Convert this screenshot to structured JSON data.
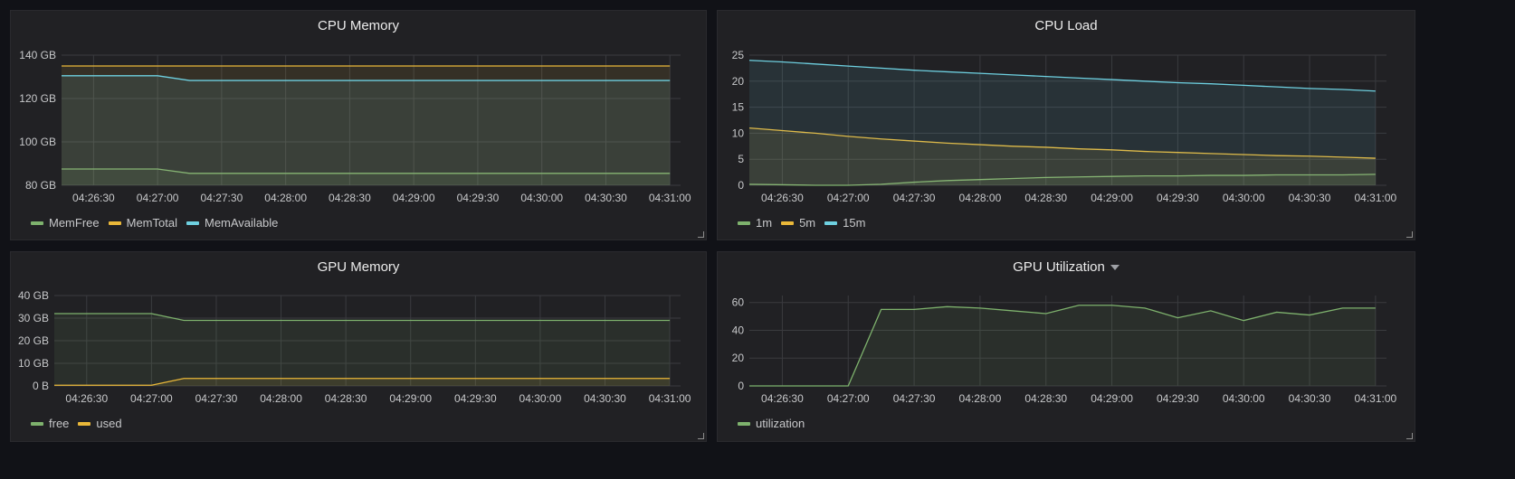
{
  "panels": [
    {
      "title": "CPU Memory",
      "has_caret": false,
      "chart_data": {
        "type": "area",
        "x": [
          "04:26:15",
          "04:26:30",
          "04:26:45",
          "04:27:00",
          "04:27:15",
          "04:27:30",
          "04:27:45",
          "04:28:00",
          "04:28:15",
          "04:28:30",
          "04:28:45",
          "04:29:00",
          "04:29:15",
          "04:29:30",
          "04:29:45",
          "04:30:00",
          "04:30:15",
          "04:30:30",
          "04:30:45",
          "04:31:00"
        ],
        "xlim": [
          "04:26:15",
          "04:31:05"
        ],
        "x_ticks": [
          "04:26:30",
          "04:27:00",
          "04:27:30",
          "04:28:00",
          "04:28:30",
          "04:29:00",
          "04:29:30",
          "04:30:00",
          "04:30:30",
          "04:31:00"
        ],
        "ylim": [
          80,
          140
        ],
        "y_ticks": [
          80,
          100,
          120,
          140
        ],
        "y_tick_labels": [
          "80 GB",
          "100 GB",
          "120 GB",
          "140 GB"
        ],
        "grid": true,
        "legend_position": "bottom-left",
        "series": [
          {
            "name": "MemFree",
            "color": "#7eb26d",
            "values": [
              87.5,
              87.5,
              87.5,
              87.5,
              85.5,
              85.5,
              85.5,
              85.5,
              85.5,
              85.5,
              85.5,
              85.5,
              85.5,
              85.5,
              85.5,
              85.5,
              85.5,
              85.5,
              85.5,
              85.5
            ]
          },
          {
            "name": "MemTotal",
            "color": "#eab839",
            "values": [
              135,
              135,
              135,
              135,
              135,
              135,
              135,
              135,
              135,
              135,
              135,
              135,
              135,
              135,
              135,
              135,
              135,
              135,
              135,
              135
            ]
          },
          {
            "name": "MemAvailable",
            "color": "#6ed0e0",
            "values": [
              130.5,
              130.5,
              130.5,
              130.5,
              128.3,
              128.3,
              128.3,
              128.3,
              128.3,
              128.3,
              128.3,
              128.3,
              128.3,
              128.3,
              128.3,
              128.3,
              128.3,
              128.3,
              128.3,
              128.3
            ]
          }
        ]
      }
    },
    {
      "title": "CPU Load",
      "has_caret": false,
      "chart_data": {
        "type": "area",
        "x": [
          "04:26:15",
          "04:26:30",
          "04:26:45",
          "04:27:00",
          "04:27:15",
          "04:27:30",
          "04:27:45",
          "04:28:00",
          "04:28:15",
          "04:28:30",
          "04:28:45",
          "04:29:00",
          "04:29:15",
          "04:29:30",
          "04:29:45",
          "04:30:00",
          "04:30:15",
          "04:30:30",
          "04:30:45",
          "04:31:00"
        ],
        "xlim": [
          "04:26:15",
          "04:31:05"
        ],
        "x_ticks": [
          "04:26:30",
          "04:27:00",
          "04:27:30",
          "04:28:00",
          "04:28:30",
          "04:29:00",
          "04:29:30",
          "04:30:00",
          "04:30:30",
          "04:31:00"
        ],
        "ylim": [
          0,
          25
        ],
        "y_ticks": [
          0,
          5,
          10,
          15,
          20,
          25
        ],
        "y_tick_labels": [
          "0",
          "5",
          "10",
          "15",
          "20",
          "25"
        ],
        "grid": true,
        "legend_position": "bottom-left",
        "series": [
          {
            "name": "1m",
            "color": "#7eb26d",
            "values": [
              0.2,
              0.1,
              0.0,
              0.0,
              0.2,
              0.6,
              0.9,
              1.1,
              1.3,
              1.5,
              1.6,
              1.7,
              1.8,
              1.8,
              1.9,
              1.9,
              2.0,
              2.0,
              2.0,
              2.1
            ]
          },
          {
            "name": "5m",
            "color": "#eab839",
            "values": [
              11.0,
              10.5,
              10.0,
              9.4,
              8.9,
              8.5,
              8.1,
              7.8,
              7.5,
              7.3,
              7.0,
              6.8,
              6.5,
              6.3,
              6.1,
              5.9,
              5.7,
              5.6,
              5.4,
              5.2
            ]
          },
          {
            "name": "15m",
            "color": "#6ed0e0",
            "values": [
              24.0,
              23.7,
              23.3,
              22.9,
              22.5,
              22.1,
              21.8,
              21.5,
              21.2,
              20.9,
              20.6,
              20.3,
              20.0,
              19.7,
              19.5,
              19.2,
              18.9,
              18.6,
              18.4,
              18.1
            ]
          }
        ]
      }
    },
    {
      "title": "GPU Memory",
      "has_caret": false,
      "chart_data": {
        "type": "area",
        "x": [
          "04:26:15",
          "04:26:30",
          "04:26:45",
          "04:27:00",
          "04:27:15",
          "04:27:30",
          "04:27:45",
          "04:28:00",
          "04:28:15",
          "04:28:30",
          "04:28:45",
          "04:29:00",
          "04:29:15",
          "04:29:30",
          "04:29:45",
          "04:30:00",
          "04:30:15",
          "04:30:30",
          "04:30:45",
          "04:31:00"
        ],
        "xlim": [
          "04:26:15",
          "04:31:05"
        ],
        "x_ticks": [
          "04:26:30",
          "04:27:00",
          "04:27:30",
          "04:28:00",
          "04:28:30",
          "04:29:00",
          "04:29:30",
          "04:30:00",
          "04:30:30",
          "04:31:00"
        ],
        "ylim": [
          0,
          40
        ],
        "y_ticks": [
          0,
          10,
          20,
          30,
          40
        ],
        "y_tick_labels": [
          "0 B",
          "10 GB",
          "20 GB",
          "30 GB",
          "40 GB"
        ],
        "grid": true,
        "legend_position": "bottom-left",
        "series": [
          {
            "name": "free",
            "color": "#7eb26d",
            "values": [
              32,
              32,
              32,
              32,
              29,
              29,
              29,
              29,
              29,
              29,
              29,
              29,
              29,
              29,
              29,
              29,
              29,
              29,
              29,
              29
            ]
          },
          {
            "name": "used",
            "color": "#eab839",
            "values": [
              0.3,
              0.3,
              0.3,
              0.3,
              3.3,
              3.3,
              3.3,
              3.3,
              3.3,
              3.3,
              3.3,
              3.3,
              3.3,
              3.3,
              3.3,
              3.3,
              3.3,
              3.3,
              3.3,
              3.3
            ]
          }
        ]
      }
    },
    {
      "title": "GPU Utilization",
      "has_caret": true,
      "chart_data": {
        "type": "area",
        "x": [
          "04:26:15",
          "04:26:30",
          "04:26:45",
          "04:27:00",
          "04:27:15",
          "04:27:30",
          "04:27:45",
          "04:28:00",
          "04:28:15",
          "04:28:30",
          "04:28:45",
          "04:29:00",
          "04:29:15",
          "04:29:30",
          "04:29:45",
          "04:30:00",
          "04:30:15",
          "04:30:30",
          "04:30:45",
          "04:31:00"
        ],
        "xlim": [
          "04:26:15",
          "04:31:05"
        ],
        "x_ticks": [
          "04:26:30",
          "04:27:00",
          "04:27:30",
          "04:28:00",
          "04:28:30",
          "04:29:00",
          "04:29:30",
          "04:30:00",
          "04:30:30",
          "04:31:00"
        ],
        "ylim": [
          0,
          65
        ],
        "y_ticks": [
          0,
          20,
          40,
          60
        ],
        "y_tick_labels": [
          "0",
          "20",
          "40",
          "60"
        ],
        "grid": true,
        "legend_position": "bottom-left",
        "series": [
          {
            "name": "utilization",
            "color": "#7eb26d",
            "values": [
              0,
              0,
              0,
              0,
              55,
              55,
              57,
              56,
              54,
              52,
              58,
              58,
              56,
              49,
              54,
              47,
              53,
              51,
              56,
              56
            ]
          }
        ]
      }
    }
  ]
}
